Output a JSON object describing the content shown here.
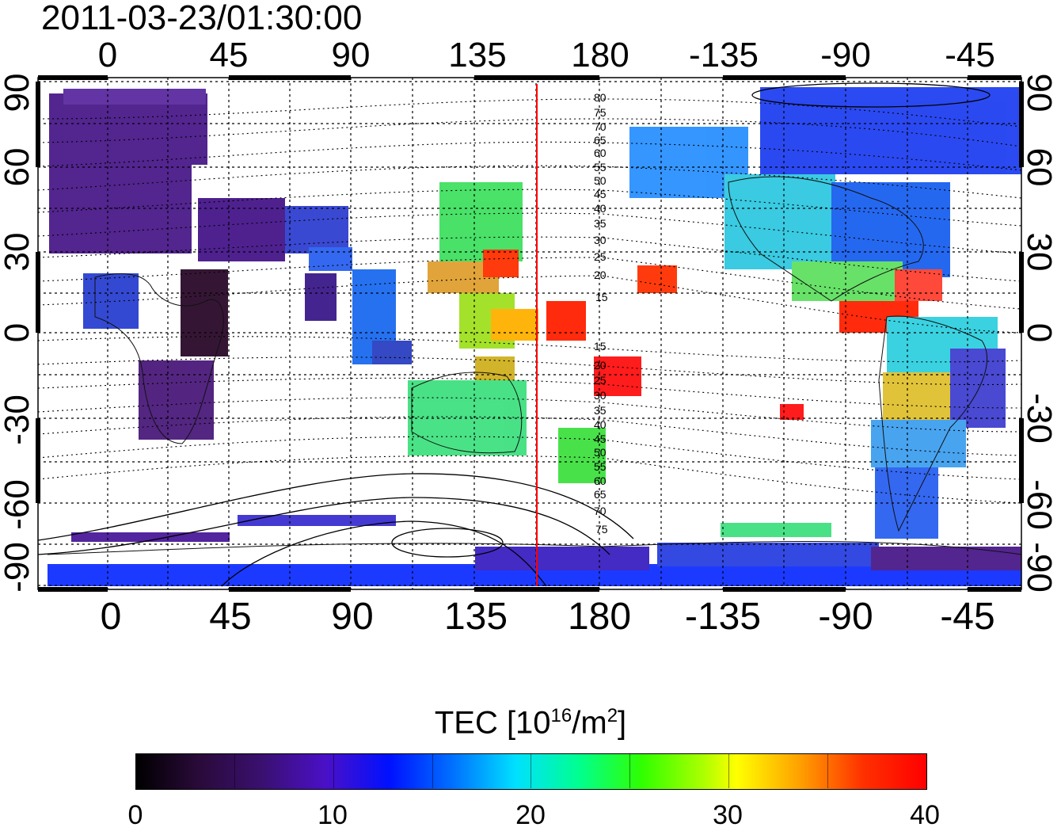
{
  "timestamp": "2011-03-23/01:30:00",
  "map": {
    "lon_ticks": [
      "0",
      "45",
      "90",
      "135",
      "180",
      "-135",
      "-90",
      "-45"
    ],
    "lat_ticks": [
      "90",
      "60",
      "30",
      "0",
      "-30",
      "-60",
      "-90"
    ],
    "contour_labels_north": [
      "80",
      "75",
      "70",
      "65",
      "60",
      "55",
      "50",
      "45",
      "40",
      "35",
      "30",
      "25",
      "20",
      "15"
    ],
    "contour_labels_south": [
      "15",
      "20",
      "25",
      "30",
      "35",
      "40",
      "45",
      "50",
      "55",
      "60",
      "65",
      "70",
      "75"
    ],
    "marker_line_longitude": 155,
    "marker_line_color": "#ff0000"
  },
  "colorbar": {
    "title_main": "TEC  [10",
    "title_sup": "16",
    "title_unit": "/m",
    "title_sup2": "2",
    "title_end": "]",
    "labels": [
      "0",
      "10",
      "20",
      "30",
      "40"
    ],
    "range": [
      0,
      40
    ]
  },
  "colors": {
    "low": "#000000",
    "mid_low": "#0010ff",
    "mid": "#00ff90",
    "mid_high": "#ffff00",
    "high": "#ff0000"
  }
}
